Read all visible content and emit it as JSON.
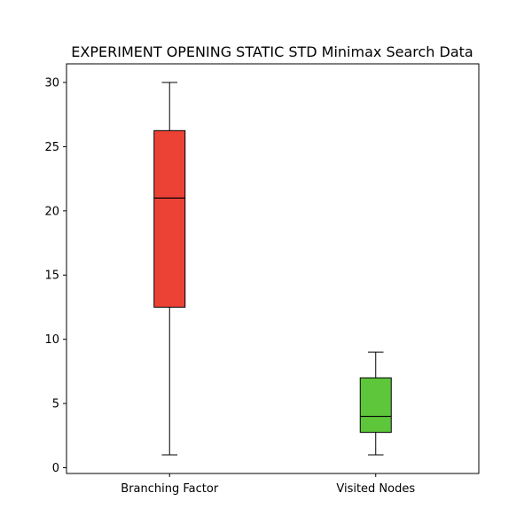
{
  "chart_data": {
    "type": "box",
    "title": "EXPERIMENT OPENING STATIC STD Minimax Search Data",
    "xlabel": "",
    "ylabel": "",
    "categories": [
      "Branching Factor",
      "Visited Nodes"
    ],
    "boxes": [
      {
        "name": "Branching Factor",
        "whisker_low": 1,
        "q1": 12.5,
        "median": 21,
        "q3": 26.25,
        "whisker_high": 30,
        "color": "#ec4236"
      },
      {
        "name": "Visited Nodes",
        "whisker_low": 1,
        "q1": 2.75,
        "median": 4,
        "q3": 7,
        "whisker_high": 9,
        "color": "#5ec63a"
      }
    ],
    "ylim": [
      -0.45,
      31.45
    ],
    "yticks": [
      0,
      5,
      10,
      15,
      20,
      25,
      30
    ],
    "grid": false
  }
}
